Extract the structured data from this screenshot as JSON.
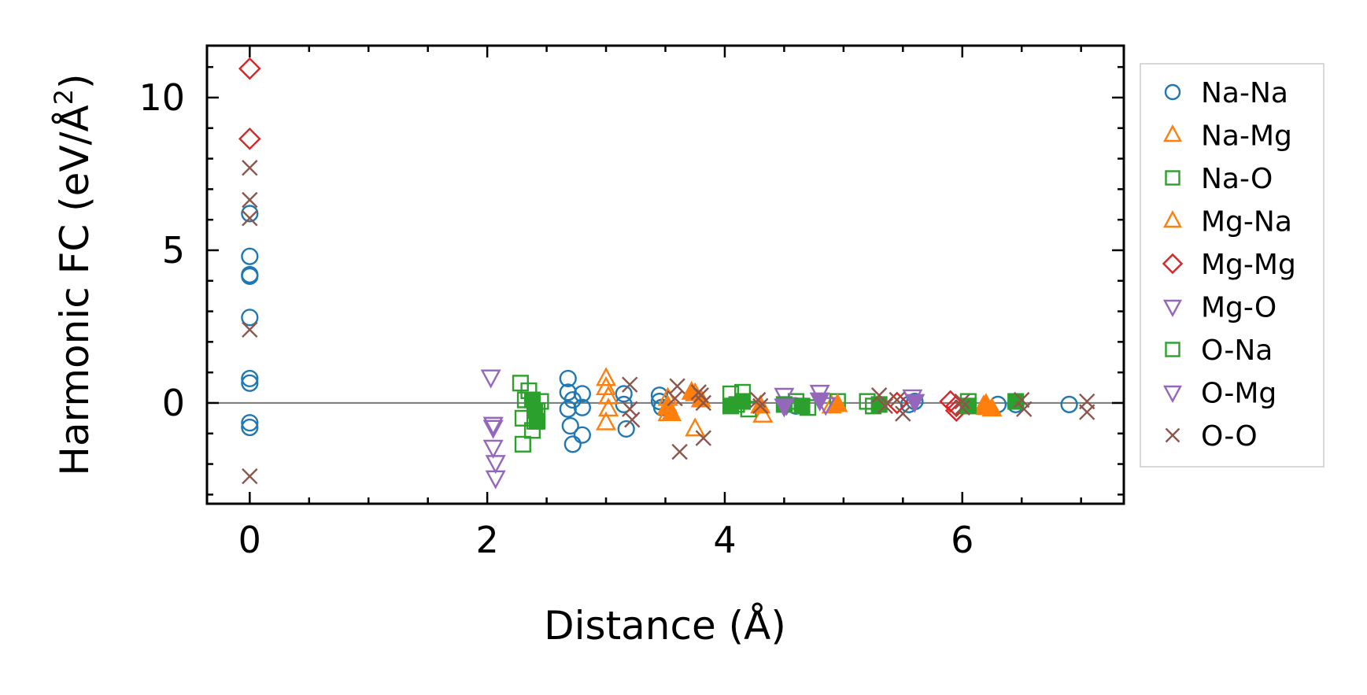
{
  "chart_data": {
    "type": "scatter",
    "title": "",
    "xlabel": "Distance (Å)",
    "ylabel": "Harmonic FC (eV/Å",
    "ylabel_sup": "2",
    "ylabel_end": ")",
    "xlim": [
      -0.36,
      7.36
    ],
    "ylim": [
      -3.3,
      11.7
    ],
    "xticks": [
      0,
      2,
      4,
      6
    ],
    "xtick_labels": [
      "0",
      "2",
      "4",
      "6"
    ],
    "yticks": [
      0,
      5,
      10
    ],
    "ytick_labels": [
      "0",
      "5",
      "10"
    ],
    "x_minor_step": 0.5,
    "y_minor_step": 1,
    "zero_line": true,
    "legend_position": "outside-right",
    "series": [
      {
        "name": "Na-Na",
        "marker": "circle",
        "fill": false,
        "color": "#1f77b4",
        "x": [
          0,
          0,
          0,
          0,
          0,
          0,
          0,
          0,
          0,
          2.68,
          2.68,
          2.68,
          2.7,
          2.72,
          2.72,
          2.8,
          2.8,
          2.8,
          3.15,
          3.15,
          3.17,
          3.45,
          3.45,
          3.47,
          4.6,
          5.55,
          5.6,
          6.3,
          6.45,
          6.9
        ],
        "y": [
          6.2,
          4.8,
          4.2,
          4.15,
          2.8,
          0.8,
          0.65,
          -0.65,
          -0.8,
          0.8,
          0.35,
          -0.2,
          -0.75,
          0.1,
          -1.35,
          0.3,
          -0.15,
          -1.05,
          0.3,
          -0.05,
          -0.85,
          0.25,
          0.05,
          -0.15,
          -0.1,
          -0.05,
          0.05,
          -0.05,
          -0.05,
          -0.05
        ]
      },
      {
        "name": "Na-Mg",
        "marker": "triangle-up",
        "fill": false,
        "color": "#ff7f0e",
        "x": [
          3.0,
          3.0,
          3.02,
          3.02,
          3.0,
          3.52,
          3.52,
          3.52,
          3.75,
          3.75,
          4.32,
          4.9,
          6.2,
          6.2
        ],
        "y": [
          0.8,
          0.5,
          0.2,
          -0.2,
          -0.65,
          0.15,
          -0.1,
          -0.35,
          0.3,
          -0.85,
          -0.4,
          -0.1,
          -0.05,
          -0.15
        ]
      },
      {
        "name": "Na-O",
        "marker": "square",
        "fill": false,
        "color": "#2ca02c",
        "x": [
          2.28,
          2.3,
          2.3,
          2.32,
          2.35,
          2.38,
          2.4,
          2.42,
          2.45,
          4.05,
          4.1,
          4.15,
          4.2,
          4.6,
          4.7,
          4.95,
          5.2,
          5.25,
          6.05
        ],
        "y": [
          0.65,
          -1.35,
          -0.5,
          0.1,
          0.4,
          -0.9,
          -0.6,
          -0.25,
          0.05,
          0.3,
          -0.05,
          0.35,
          -0.2,
          0.05,
          -0.15,
          0.05,
          0.05,
          -0.1,
          0.05
        ]
      },
      {
        "name": "Mg-Na",
        "marker": "triangle-up",
        "fill": true,
        "color": "#ff7f0e",
        "x": [
          3.52,
          3.55,
          3.72,
          3.8,
          4.3,
          4.95,
          6.18,
          6.25
        ],
        "y": [
          -0.15,
          -0.35,
          0.35,
          0.1,
          -0.1,
          -0.05,
          -0.1,
          -0.2
        ]
      },
      {
        "name": "Mg-Mg",
        "marker": "diamond",
        "fill": false,
        "color": "#d62728",
        "x": [
          0,
          0,
          5.45,
          5.9,
          5.95,
          5.95
        ],
        "y": [
          10.95,
          8.65,
          0.0,
          0.05,
          -0.1,
          -0.25
        ]
      },
      {
        "name": "Mg-O",
        "marker": "triangle-down",
        "fill": false,
        "color": "#9467bd",
        "x": [
          2.03,
          2.05,
          2.05,
          2.07,
          2.07,
          2.05,
          4.5,
          4.52,
          4.8,
          4.85,
          5.58
        ],
        "y": [
          0.85,
          -0.7,
          -1.45,
          -1.95,
          -2.45,
          -0.8,
          0.25,
          -0.05,
          0.35,
          -0.05,
          0.2
        ]
      },
      {
        "name": "O-Na",
        "marker": "square",
        "fill": true,
        "color": "#2ca02c",
        "x": [
          2.38,
          2.4,
          2.42,
          4.05,
          4.15,
          4.5,
          4.65,
          5.3,
          6.05,
          6.45
        ],
        "y": [
          0.1,
          -0.25,
          -0.6,
          -0.1,
          0.05,
          -0.05,
          -0.1,
          -0.05,
          -0.1,
          0.05
        ]
      },
      {
        "name": "O-Mg",
        "marker": "triangle-down",
        "fill": true,
        "color": "#9467bd",
        "x": [
          4.5,
          4.8,
          5.6
        ],
        "y": [
          -0.1,
          0.1,
          0.05
        ]
      },
      {
        "name": "O-O",
        "marker": "x",
        "fill": false,
        "color": "#8c564b",
        "x": [
          0,
          0,
          0,
          0,
          0,
          3.2,
          3.2,
          3.22,
          3.6,
          3.58,
          3.62,
          3.78,
          3.8,
          3.82,
          3.82,
          4.28,
          4.3,
          5.3,
          5.35,
          5.45,
          5.5,
          6.0,
          6.0,
          6.5,
          6.52,
          7.05,
          7.05
        ],
        "y": [
          7.7,
          6.65,
          6.05,
          2.4,
          -2.4,
          0.6,
          -0.2,
          -0.55,
          0.55,
          0.15,
          -1.6,
          0.35,
          0.25,
          0.0,
          -1.15,
          0.1,
          -0.1,
          0.25,
          -0.1,
          0.1,
          -0.35,
          0.05,
          -0.15,
          0.1,
          -0.2,
          0.05,
          -0.3
        ]
      }
    ]
  }
}
